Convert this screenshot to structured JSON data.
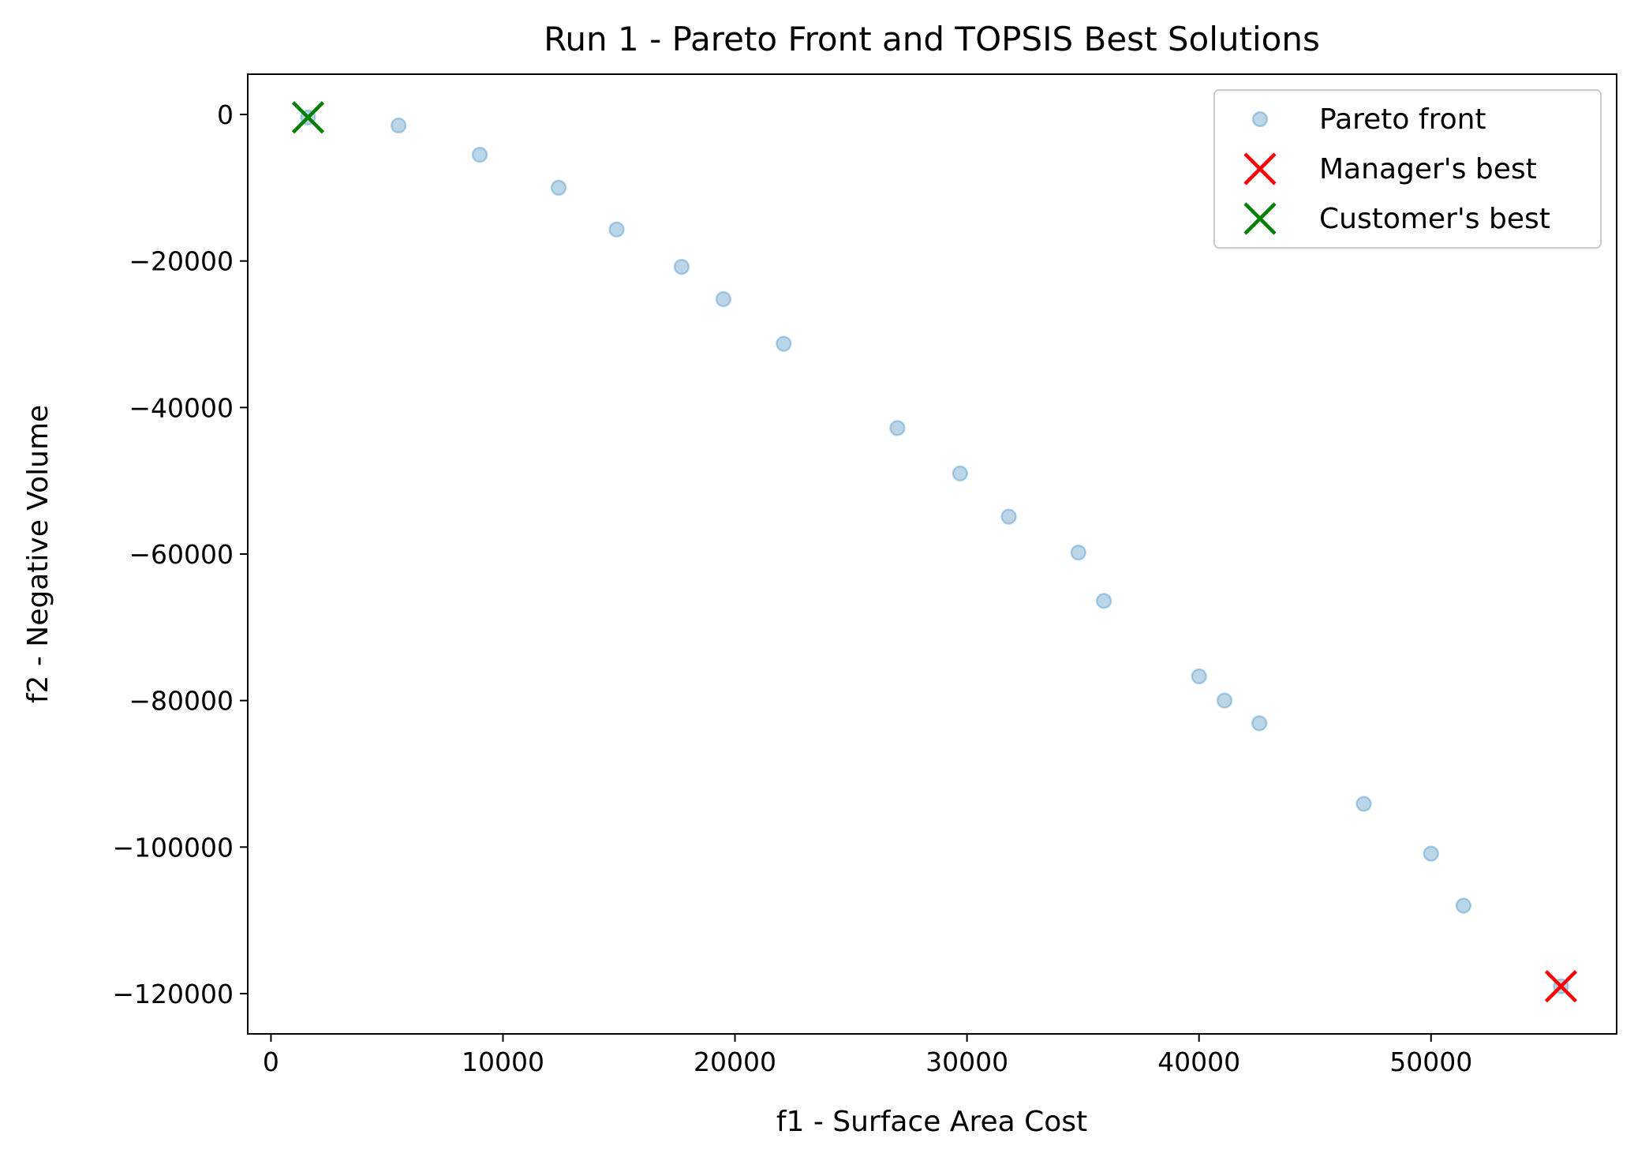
{
  "chart_data": {
    "type": "scatter",
    "title": "Run 1 - Pareto Front and TOPSIS Best Solutions",
    "xlabel": "f1 - Surface Area Cost",
    "ylabel": "f2 - Negative Volume",
    "xlim": [
      -1000,
      58000
    ],
    "ylim": [
      -125500,
      5500
    ],
    "xticks": [
      0,
      10000,
      20000,
      30000,
      40000,
      50000
    ],
    "yticks": [
      0,
      -20000,
      -40000,
      -60000,
      -80000,
      -100000,
      -120000
    ],
    "xtick_labels": [
      "0",
      "10000",
      "20000",
      "30000",
      "40000",
      "50000"
    ],
    "ytick_labels": [
      "0",
      "−20000",
      "−40000",
      "−60000",
      "−80000",
      "−100000",
      "−120000"
    ],
    "legend_position": "top-right",
    "series": [
      {
        "name": "Pareto front",
        "marker": "circle",
        "color": "#1f77b4",
        "opacity": 0.3,
        "x": [
          1600,
          5500,
          9000,
          12400,
          14900,
          17700,
          19500,
          22100,
          27000,
          29700,
          31800,
          34800,
          35900,
          40000,
          41100,
          42600,
          47100,
          50000,
          51400,
          55600
        ],
        "y": [
          -400,
          -1500,
          -5500,
          -10000,
          -15700,
          -20800,
          -25200,
          -31300,
          -42800,
          -49000,
          -54900,
          -59800,
          -66400,
          -76700,
          -80000,
          -83100,
          -94100,
          -100900,
          -108000,
          -119000
        ]
      },
      {
        "name": "Manager's best",
        "marker": "x",
        "color": "#ff0000",
        "x": [
          55600
        ],
        "y": [
          -119000
        ]
      },
      {
        "name": "Customer's best",
        "marker": "x",
        "color": "#008000",
        "x": [
          1600
        ],
        "y": [
          -400
        ]
      }
    ]
  }
}
